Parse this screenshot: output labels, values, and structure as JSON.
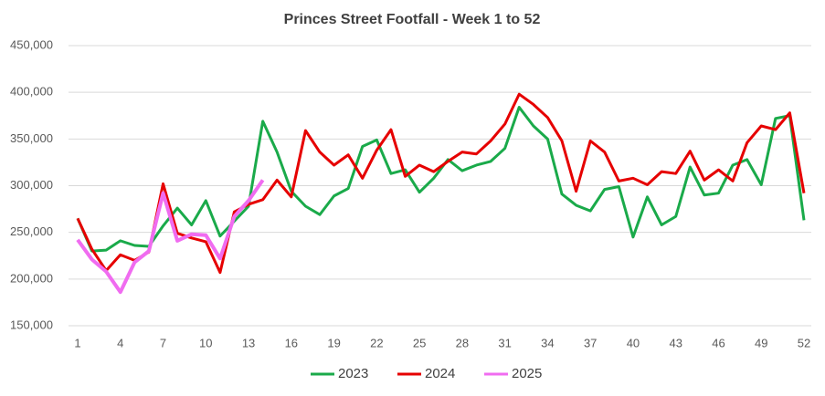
{
  "chart_data": {
    "type": "line",
    "title": "Princes Street Footfall - Week 1 to 52",
    "x": [
      1,
      2,
      3,
      4,
      5,
      6,
      7,
      8,
      9,
      10,
      11,
      12,
      13,
      14,
      15,
      16,
      17,
      18,
      19,
      20,
      21,
      22,
      23,
      24,
      25,
      26,
      27,
      28,
      29,
      30,
      31,
      32,
      33,
      34,
      35,
      36,
      37,
      38,
      39,
      40,
      41,
      42,
      43,
      44,
      45,
      46,
      47,
      48,
      49,
      50,
      51,
      52
    ],
    "xlim": [
      1,
      52
    ],
    "xticks": [
      1,
      4,
      7,
      10,
      13,
      16,
      19,
      22,
      25,
      28,
      31,
      34,
      37,
      40,
      43,
      46,
      49,
      52
    ],
    "ylim": [
      150000,
      450000
    ],
    "yticks": [
      {
        "value": 150000,
        "label": "150,000"
      },
      {
        "value": 200000,
        "label": "200,000"
      },
      {
        "value": 250000,
        "label": "250,000"
      },
      {
        "value": 300000,
        "label": "300,000"
      },
      {
        "value": 350000,
        "label": "350,000"
      },
      {
        "value": 400000,
        "label": "400,000"
      },
      {
        "value": 450000,
        "label": "450,000"
      }
    ],
    "grid": true,
    "legend": "bottom",
    "series": [
      {
        "name": "2023",
        "color": "#1aaa4a",
        "values": [
          265000,
          230000,
          231000,
          241000,
          236000,
          235000,
          257000,
          276000,
          258000,
          284000,
          246000,
          262000,
          278000,
          369000,
          336000,
          294000,
          278000,
          269000,
          289000,
          297000,
          342000,
          349000,
          313000,
          317000,
          293000,
          308000,
          328000,
          316000,
          322000,
          326000,
          340000,
          384000,
          364000,
          350000,
          291000,
          279000,
          273000,
          296000,
          299000,
          245000,
          288000,
          258000,
          267000,
          320000,
          290000,
          292000,
          322000,
          328000,
          301000,
          372000,
          375000,
          263000
        ]
      },
      {
        "name": "2024",
        "color": "#e60000",
        "values": [
          265000,
          232000,
          209000,
          226000,
          220000,
          229000,
          302000,
          249000,
          244000,
          240000,
          207000,
          272000,
          280000,
          285000,
          306000,
          288000,
          359000,
          336000,
          322000,
          333000,
          308000,
          338000,
          360000,
          310000,
          322000,
          315000,
          326000,
          336000,
          334000,
          348000,
          366000,
          398000,
          387000,
          373000,
          348000,
          294000,
          348000,
          336000,
          305000,
          308000,
          301000,
          315000,
          313000,
          337000,
          306000,
          317000,
          305000,
          346000,
          364000,
          360000,
          378000,
          292000
        ]
      },
      {
        "name": "2025",
        "color": "#f06cf0",
        "values": [
          242000,
          221000,
          208000,
          186000,
          218000,
          230000,
          292000,
          241000,
          248000,
          247000,
          222000,
          267000,
          284000,
          306000,
          null,
          null,
          null,
          null,
          null,
          null,
          null,
          null,
          null,
          null,
          null,
          null,
          null,
          null,
          null,
          null,
          null,
          null,
          null,
          null,
          null,
          null,
          null,
          null,
          null,
          null,
          null,
          null,
          null,
          null,
          null,
          null,
          null,
          null,
          null,
          null,
          null,
          null
        ]
      }
    ]
  }
}
